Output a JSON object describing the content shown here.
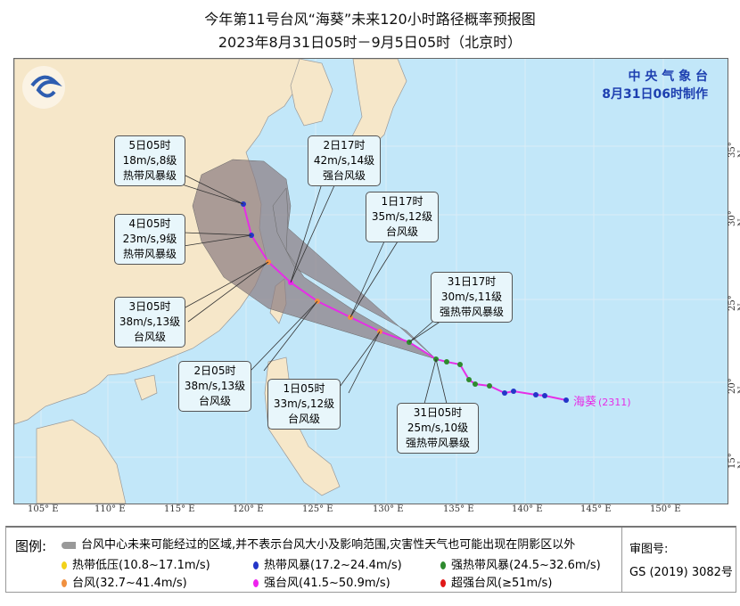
{
  "header": {
    "title": "今年第11号台风“海葵”未来120小时路径概率预报图",
    "subtitle": "2023年8月31日05时－9月5日05时（北京时）"
  },
  "agency": {
    "name": "中 央 气 象 台",
    "made": "8月31日06时制作"
  },
  "typhoon": {
    "name": "海葵",
    "code": "(2311)"
  },
  "axes": {
    "lon": [
      "105° E",
      "110° E",
      "115° E",
      "120° E",
      "125° E",
      "130° E",
      "135° E",
      "140° E",
      "145° E",
      "150° E"
    ],
    "lat": [
      "35° N",
      "30° N",
      "25° N",
      "20° N",
      "15° N"
    ]
  },
  "colors": {
    "sea": "#c2e7f9",
    "land": "#f6e7c9",
    "track": "#e62ee6",
    "cone": "#8a7a80",
    "tropical_depression": "#f2d21a",
    "tropical_storm": "#2436c8",
    "severe_tropical_storm": "#2e8a2e",
    "typhoon": "#f09040",
    "severe_typhoon": "#ee22ee",
    "super_typhoon": "#e01818"
  },
  "forecast_labels": [
    {
      "time": "5日05时",
      "wind": "18m/s,8级",
      "level": "热带风暴级"
    },
    {
      "time": "4日05时",
      "wind": "23m/s,9级",
      "level": "热带风暴级"
    },
    {
      "time": "3日05时",
      "wind": "38m/s,13级",
      "level": "台风级"
    },
    {
      "time": "2日17时",
      "wind": "42m/s,14级",
      "level": "强台风级"
    },
    {
      "time": "2日05时",
      "wind": "38m/s,13级",
      "level": "台风级"
    },
    {
      "time": "1日17时",
      "wind": "35m/s,12级",
      "level": "台风级"
    },
    {
      "time": "1日05时",
      "wind": "33m/s,12级",
      "level": "台风级"
    },
    {
      "time": "31日17时",
      "wind": "30m/s,11级",
      "level": "强热带风暴级"
    },
    {
      "time": "31日05时",
      "wind": "25m/s,10级",
      "level": "强热带风暴级"
    }
  ],
  "legend": {
    "title": "图例:",
    "cone": "台风中心未来可能经过的区域,并不表示台风大小及影响范围,灾害性天气也可能出现在阴影区以外",
    "items": [
      "热带低压(10.8~17.1m/s)",
      "热带风暴(17.2~24.4m/s)",
      "强热带风暴(24.5~32.6m/s)",
      "台风(32.7~41.4m/s)",
      "强台风(41.5~50.9m/s)",
      "超强台风(≥51m/s)"
    ],
    "review_label": "审图号:",
    "review_no": "GS (2019) 3082号"
  }
}
